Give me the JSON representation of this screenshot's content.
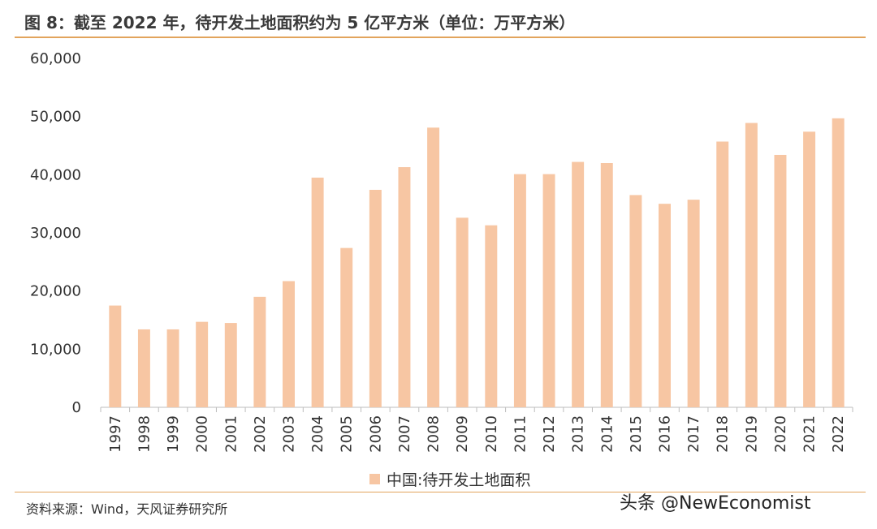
{
  "header": {
    "title": "图 8：截至 2022 年，待开发土地面积约为 5 亿平方米（单位：万平方米）"
  },
  "chart_data": {
    "type": "bar",
    "title": "图 8：截至 2022 年，待开发土地面积约为 5 亿平方米（单位：万平方米）",
    "xlabel": "",
    "ylabel": "",
    "ylim": [
      0,
      60000
    ],
    "yticks": [
      0,
      10000,
      20000,
      30000,
      40000,
      50000,
      60000
    ],
    "ytick_labels": [
      "0",
      "10,000",
      "20,000",
      "30,000",
      "40,000",
      "50,000",
      "60,000"
    ],
    "grid": false,
    "legend_position": "bottom",
    "categories": [
      "1997",
      "1998",
      "1999",
      "2000",
      "2001",
      "2002",
      "2003",
      "2004",
      "2005",
      "2006",
      "2007",
      "2008",
      "2009",
      "2010",
      "2011",
      "2012",
      "2013",
      "2014",
      "2015",
      "2016",
      "2017",
      "2018",
      "2019",
      "2020",
      "2021",
      "2022"
    ],
    "series": [
      {
        "name": "中国:待开发土地面积",
        "color": "#f7c6a3",
        "values": [
          17500,
          13400,
          13400,
          14700,
          14500,
          19000,
          21700,
          39500,
          27400,
          37400,
          41300,
          48100,
          32600,
          31300,
          40100,
          40100,
          42200,
          42000,
          36500,
          35000,
          35700,
          45700,
          48900,
          43400,
          47400,
          49700
        ]
      }
    ]
  },
  "legend": {
    "label": "中国:待开发土地面积"
  },
  "footer": {
    "source": "资料来源：Wind，天风证券研究所",
    "watermark": "头条 @NewEconomist"
  }
}
